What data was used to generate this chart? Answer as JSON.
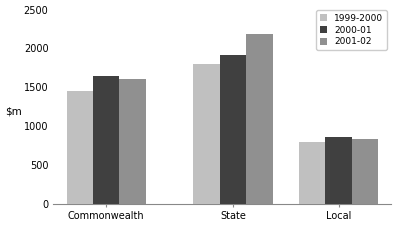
{
  "categories": [
    "Commonwealth",
    "State",
    "Local"
  ],
  "series": {
    "1999-2000": [
      1450,
      1800,
      800
    ],
    "2000-01": [
      1650,
      1920,
      860
    ],
    "2001-02": [
      1610,
      2180,
      840
    ]
  },
  "colors": {
    "1999-2000": "#c0c0c0",
    "2000-01": "#404040",
    "2001-02": "#909090"
  },
  "ylim": [
    0,
    2500
  ],
  "yticks": [
    0,
    500,
    1000,
    1500,
    2000,
    2500
  ],
  "bar_width": 0.25,
  "legend_labels": [
    "1999-2000",
    "2000-01",
    "2001-02"
  ]
}
